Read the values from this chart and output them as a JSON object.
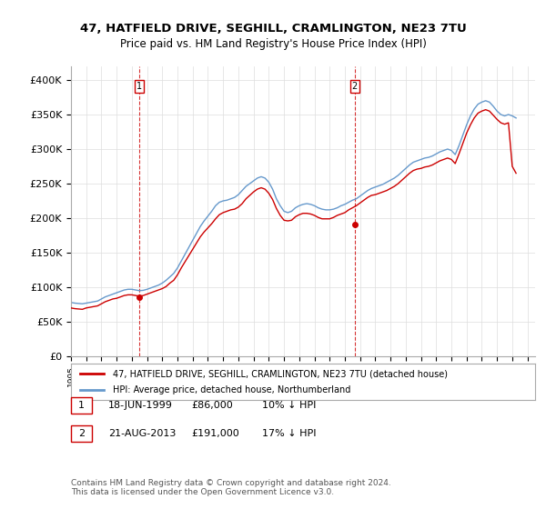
{
  "title": "47, HATFIELD DRIVE, SEGHILL, CRAMLINGTON, NE23 7TU",
  "subtitle": "Price paid vs. HM Land Registry's House Price Index (HPI)",
  "ylabel": "",
  "ylim": [
    0,
    420000
  ],
  "yticks": [
    0,
    50000,
    100000,
    150000,
    200000,
    250000,
    300000,
    350000,
    400000
  ],
  "ytick_labels": [
    "£0",
    "£50K",
    "£100K",
    "£150K",
    "£200K",
    "£250K",
    "£300K",
    "£350K",
    "£400K"
  ],
  "background_color": "#ffffff",
  "plot_bg_color": "#ffffff",
  "grid_color": "#dddddd",
  "hpi_color": "#6699cc",
  "price_color": "#cc0000",
  "vline_color": "#cc0000",
  "transaction1": {
    "date_idx": 1999.47,
    "price": 86000,
    "label": "1",
    "pct": "10%"
  },
  "transaction2": {
    "date_idx": 2013.64,
    "price": 191000,
    "label": "2",
    "pct": "17%"
  },
  "legend_label_price": "47, HATFIELD DRIVE, SEGHILL, CRAMLINGTON, NE23 7TU (detached house)",
  "legend_label_hpi": "HPI: Average price, detached house, Northumberland",
  "footer": "Contains HM Land Registry data © Crown copyright and database right 2024.\nThis data is licensed under the Open Government Licence v3.0.",
  "table": [
    {
      "num": "1",
      "date": "18-JUN-1999",
      "price": "£86,000",
      "pct": "10% ↓ HPI"
    },
    {
      "num": "2",
      "date": "21-AUG-2013",
      "price": "£191,000",
      "pct": "17% ↓ HPI"
    }
  ],
  "hpi_data": {
    "years": [
      1995,
      1995.25,
      1995.5,
      1995.75,
      1996,
      1996.25,
      1996.5,
      1996.75,
      1997,
      1997.25,
      1997.5,
      1997.75,
      1998,
      1998.25,
      1998.5,
      1998.75,
      1999,
      1999.25,
      1999.5,
      1999.75,
      2000,
      2000.25,
      2000.5,
      2000.75,
      2001,
      2001.25,
      2001.5,
      2001.75,
      2002,
      2002.25,
      2002.5,
      2002.75,
      2003,
      2003.25,
      2003.5,
      2003.75,
      2004,
      2004.25,
      2004.5,
      2004.75,
      2005,
      2005.25,
      2005.5,
      2005.75,
      2006,
      2006.25,
      2006.5,
      2006.75,
      2007,
      2007.25,
      2007.5,
      2007.75,
      2008,
      2008.25,
      2008.5,
      2008.75,
      2009,
      2009.25,
      2009.5,
      2009.75,
      2010,
      2010.25,
      2010.5,
      2010.75,
      2011,
      2011.25,
      2011.5,
      2011.75,
      2012,
      2012.25,
      2012.5,
      2012.75,
      2013,
      2013.25,
      2013.5,
      2013.75,
      2014,
      2014.25,
      2014.5,
      2014.75,
      2015,
      2015.25,
      2015.5,
      2015.75,
      2016,
      2016.25,
      2016.5,
      2016.75,
      2017,
      2017.25,
      2017.5,
      2017.75,
      2018,
      2018.25,
      2018.5,
      2018.75,
      2019,
      2019.25,
      2019.5,
      2019.75,
      2020,
      2020.25,
      2020.5,
      2020.75,
      2021,
      2021.25,
      2021.5,
      2021.75,
      2022,
      2022.25,
      2022.5,
      2022.75,
      2023,
      2023.25,
      2023.5,
      2023.75,
      2024,
      2024.25
    ],
    "values": [
      78000,
      77000,
      76500,
      76000,
      77000,
      78000,
      79000,
      80000,
      83000,
      86000,
      88000,
      90000,
      92000,
      94000,
      96000,
      97000,
      97000,
      96000,
      95000,
      95500,
      97000,
      99000,
      101000,
      103000,
      106000,
      110000,
      115000,
      120000,
      128000,
      138000,
      148000,
      158000,
      168000,
      178000,
      188000,
      196000,
      203000,
      210000,
      218000,
      223000,
      225000,
      226000,
      228000,
      230000,
      234000,
      240000,
      246000,
      250000,
      254000,
      258000,
      260000,
      258000,
      252000,
      242000,
      228000,
      218000,
      210000,
      208000,
      210000,
      215000,
      218000,
      220000,
      221000,
      220000,
      218000,
      215000,
      213000,
      212000,
      212000,
      213000,
      215000,
      218000,
      220000,
      223000,
      226000,
      228000,
      232000,
      236000,
      240000,
      243000,
      245000,
      247000,
      249000,
      252000,
      255000,
      258000,
      262000,
      267000,
      272000,
      277000,
      281000,
      283000,
      285000,
      287000,
      288000,
      290000,
      293000,
      296000,
      298000,
      300000,
      298000,
      292000,
      305000,
      320000,
      335000,
      348000,
      358000,
      365000,
      368000,
      370000,
      368000,
      362000,
      355000,
      350000,
      348000,
      350000,
      348000,
      345000
    ]
  },
  "price_data": {
    "years": [
      1995,
      1995.25,
      1995.5,
      1995.75,
      1996,
      1996.25,
      1996.5,
      1996.75,
      1997,
      1997.25,
      1997.5,
      1997.75,
      1998,
      1998.25,
      1998.5,
      1998.75,
      1999,
      1999.25,
      1999.5,
      1999.75,
      2000,
      2000.25,
      2000.5,
      2000.75,
      2001,
      2001.25,
      2001.5,
      2001.75,
      2002,
      2002.25,
      2002.5,
      2002.75,
      2003,
      2003.25,
      2003.5,
      2003.75,
      2004,
      2004.25,
      2004.5,
      2004.75,
      2005,
      2005.25,
      2005.5,
      2005.75,
      2006,
      2006.25,
      2006.5,
      2006.75,
      2007,
      2007.25,
      2007.5,
      2007.75,
      2008,
      2008.25,
      2008.5,
      2008.75,
      2009,
      2009.25,
      2009.5,
      2009.75,
      2010,
      2010.25,
      2010.5,
      2010.75,
      2011,
      2011.25,
      2011.5,
      2011.75,
      2012,
      2012.25,
      2012.5,
      2012.75,
      2013,
      2013.25,
      2013.5,
      2013.75,
      2014,
      2014.25,
      2014.5,
      2014.75,
      2015,
      2015.25,
      2015.5,
      2015.75,
      2016,
      2016.25,
      2016.5,
      2016.75,
      2017,
      2017.25,
      2017.5,
      2017.75,
      2018,
      2018.25,
      2018.5,
      2018.75,
      2019,
      2019.25,
      2019.5,
      2019.75,
      2020,
      2020.25,
      2020.5,
      2020.75,
      2021,
      2021.25,
      2021.5,
      2021.75,
      2022,
      2022.25,
      2022.5,
      2022.75,
      2023,
      2023.25,
      2023.5,
      2023.75,
      2024,
      2024.25
    ],
    "values": [
      70000,
      69000,
      68500,
      68000,
      70000,
      71000,
      72000,
      73000,
      76000,
      79000,
      81000,
      83000,
      84000,
      86000,
      88000,
      89000,
      89000,
      88000,
      87000,
      88000,
      90000,
      92000,
      94000,
      96000,
      98000,
      101000,
      106000,
      110000,
      118000,
      128000,
      137000,
      146000,
      155000,
      164000,
      173000,
      180000,
      186000,
      192000,
      199000,
      205000,
      208000,
      210000,
      212000,
      213000,
      216000,
      221000,
      228000,
      233000,
      238000,
      242000,
      244000,
      242000,
      236000,
      227000,
      214000,
      204000,
      197000,
      196000,
      197000,
      202000,
      205000,
      207000,
      207000,
      206000,
      204000,
      201000,
      199000,
      199000,
      199000,
      201000,
      204000,
      206000,
      208000,
      212000,
      215000,
      218000,
      222000,
      226000,
      230000,
      233000,
      234000,
      236000,
      238000,
      240000,
      243000,
      246000,
      250000,
      255000,
      260000,
      265000,
      269000,
      271000,
      272000,
      274000,
      275000,
      277000,
      280000,
      283000,
      285000,
      287000,
      285000,
      279000,
      293000,
      308000,
      323000,
      335000,
      345000,
      352000,
      355000,
      357000,
      355000,
      349000,
      343000,
      338000,
      336000,
      338000,
      275000,
      265000
    ]
  }
}
